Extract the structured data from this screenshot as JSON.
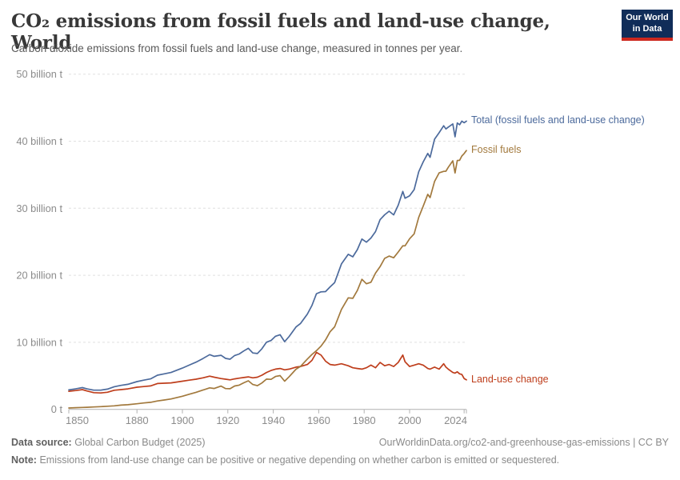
{
  "header": {
    "title": "CO₂ emissions from fossil fuels and land-use change, World",
    "subtitle": "Carbon dioxide emissions from fossil fuels and land-use change, measured in tonnes per year.",
    "logo": {
      "line1": "Our World",
      "line2": "in Data"
    }
  },
  "chart_data": {
    "type": "line",
    "title": "CO₂ emissions from fossil fuels and land-use change, World",
    "xlabel": "",
    "ylabel": "",
    "unit": "billion t",
    "xlim": [
      1850,
      2025
    ],
    "ylim": [
      0,
      50
    ],
    "grid": "horizontal-dashed",
    "legend_position": "end-of-line labels, right side",
    "x_ticks": [
      1850,
      1880,
      1900,
      1920,
      1940,
      1960,
      1980,
      2000,
      2024
    ],
    "y_ticks": [
      {
        "value": 0,
        "label": "0 t"
      },
      {
        "value": 10,
        "label": "10 billion t"
      },
      {
        "value": 20,
        "label": "20 billion t"
      },
      {
        "value": 30,
        "label": "30 billion t"
      },
      {
        "value": 40,
        "label": "40 billion t"
      },
      {
        "value": 50,
        "label": "50 billion t"
      }
    ],
    "x": [
      1850,
      1853,
      1856,
      1858,
      1861,
      1864,
      1867,
      1870,
      1873,
      1876,
      1880,
      1883,
      1886,
      1889,
      1892,
      1895,
      1900,
      1903,
      1906,
      1909,
      1912,
      1914,
      1917,
      1919,
      1921,
      1923,
      1925,
      1927,
      1929,
      1931,
      1933,
      1935,
      1937,
      1939,
      1941,
      1943,
      1945,
      1947,
      1950,
      1952,
      1955,
      1957,
      1959,
      1961,
      1963,
      1965,
      1967,
      1970,
      1973,
      1975,
      1977,
      1979,
      1981,
      1983,
      1985,
      1987,
      1989,
      1991,
      1993,
      1995,
      1997,
      1998,
      2000,
      2002,
      2004,
      2006,
      2008,
      2009,
      2011,
      2013,
      2015,
      2016,
      2017,
      2019,
      2020,
      2021,
      2022,
      2023,
      2024,
      2025
    ],
    "series": [
      {
        "name": "Total (fossil fuels and land-use change)",
        "color": "#4C6A9C",
        "values": [
          2.9,
          3.05,
          3.24,
          3.06,
          2.86,
          2.86,
          3.02,
          3.38,
          3.58,
          3.74,
          4.14,
          4.36,
          4.55,
          5.1,
          5.3,
          5.5,
          6.16,
          6.6,
          7.04,
          7.58,
          8.16,
          7.91,
          8.07,
          7.6,
          7.48,
          8.03,
          8.26,
          8.71,
          9.11,
          8.41,
          8.33,
          9.04,
          10.01,
          10.27,
          10.91,
          11.13,
          10.1,
          10.88,
          12.29,
          12.82,
          14.21,
          15.49,
          17.26,
          17.53,
          17.56,
          18.27,
          18.91,
          21.7,
          23.13,
          22.76,
          23.83,
          25.4,
          24.94,
          25.56,
          26.52,
          28.29,
          29.02,
          29.56,
          29.01,
          30.47,
          32.5,
          31.49,
          31.85,
          32.78,
          35.44,
          36.91,
          38.18,
          37.59,
          40.3,
          41.27,
          42.3,
          41.82,
          42.1,
          42.58,
          40.66,
          42.72,
          42.45,
          42.99,
          42.76,
          43.0
        ]
      },
      {
        "name": "Fossil fuels",
        "color": "#A2793D",
        "values": [
          0.2,
          0.25,
          0.29,
          0.31,
          0.36,
          0.41,
          0.47,
          0.53,
          0.63,
          0.69,
          0.84,
          0.96,
          1.05,
          1.25,
          1.4,
          1.55,
          1.96,
          2.25,
          2.54,
          2.88,
          3.21,
          3.11,
          3.47,
          3.1,
          3.08,
          3.48,
          3.61,
          3.96,
          4.26,
          3.71,
          3.53,
          3.94,
          4.51,
          4.47,
          4.91,
          5.03,
          4.2,
          4.88,
          5.99,
          6.42,
          7.51,
          8.19,
          8.76,
          9.43,
          10.36,
          11.57,
          12.31,
          14.9,
          16.63,
          16.56,
          17.73,
          19.4,
          18.74,
          18.96,
          20.32,
          21.29,
          22.52,
          22.86,
          22.61,
          23.47,
          24.4,
          24.39,
          25.45,
          26.18,
          28.64,
          30.31,
          32.08,
          31.59,
          34.0,
          35.27,
          35.5,
          35.52,
          36.1,
          37.08,
          35.26,
          37.12,
          37.15,
          37.79,
          38.16,
          38.6
        ]
      },
      {
        "name": "Land-use change",
        "color": "#BE3E1C",
        "values": [
          2.7,
          2.8,
          2.95,
          2.75,
          2.5,
          2.45,
          2.55,
          2.85,
          2.95,
          3.05,
          3.3,
          3.4,
          3.5,
          3.85,
          3.9,
          3.95,
          4.2,
          4.35,
          4.5,
          4.7,
          4.95,
          4.8,
          4.6,
          4.5,
          4.4,
          4.55,
          4.65,
          4.75,
          4.85,
          4.7,
          4.8,
          5.1,
          5.5,
          5.8,
          6.0,
          6.1,
          5.9,
          6.0,
          6.3,
          6.4,
          6.7,
          7.3,
          8.5,
          8.1,
          7.2,
          6.7,
          6.6,
          6.8,
          6.5,
          6.2,
          6.1,
          6.0,
          6.2,
          6.6,
          6.2,
          7.0,
          6.5,
          6.7,
          6.4,
          7.0,
          8.1,
          7.1,
          6.4,
          6.6,
          6.8,
          6.6,
          6.1,
          6.0,
          6.3,
          6.0,
          6.8,
          6.3,
          6.0,
          5.5,
          5.4,
          5.6,
          5.3,
          5.2,
          4.6,
          4.4
        ]
      }
    ]
  },
  "styles": {
    "grid_color": "#e0e0e0",
    "axis_color": "#b0b0b0",
    "tick_label_color": "#8b8b8b"
  },
  "footer": {
    "source_label": "Data source:",
    "source_text": "Global Carbon Budget (2025)",
    "url_text": "OurWorldinData.org/co2-and-greenhouse-gas-emissions | CC BY",
    "note_label": "Note:",
    "note_text": "Emissions from land-use change can be positive or negative depending on whether carbon is emitted or sequestered."
  }
}
